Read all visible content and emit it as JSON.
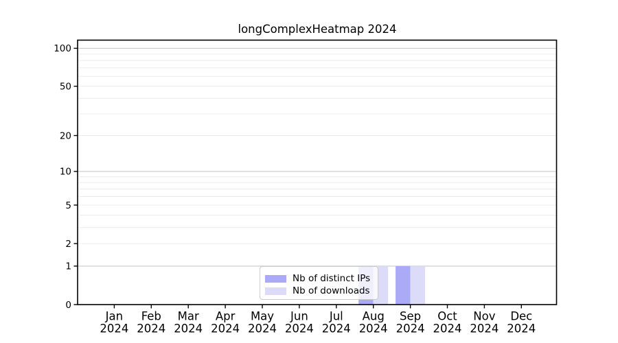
{
  "chart_data": {
    "type": "bar",
    "title": "longComplexHeatmap 2024",
    "x_year": "2024",
    "categories": [
      "Jan",
      "Feb",
      "Mar",
      "Apr",
      "May",
      "Jun",
      "Jul",
      "Aug",
      "Sep",
      "Oct",
      "Nov",
      "Dec"
    ],
    "series": [
      {
        "name": "Nb of distinct IPs",
        "color": "#aaaaf6",
        "values": [
          0,
          0,
          0,
          0,
          0,
          0,
          0,
          1,
          1,
          0,
          0,
          0
        ]
      },
      {
        "name": "Nb of downloads",
        "color": "#dcdcf8",
        "values": [
          0,
          0,
          0,
          0,
          0,
          0,
          0,
          1,
          1,
          0,
          0,
          0
        ]
      }
    ],
    "y_scale": "log1p",
    "ylim": [
      0,
      116
    ],
    "y_ticks_labeled": [
      0,
      1,
      2,
      5,
      10,
      20,
      50,
      100
    ],
    "y_grid_major": [
      1,
      10,
      100
    ],
    "y_grid_minor": [
      2,
      3,
      4,
      5,
      6,
      7,
      8,
      9,
      20,
      30,
      40,
      50,
      60,
      70,
      80,
      90
    ],
    "grid": "horizontal",
    "legend_position": "lower center",
    "colors": {
      "spine": "#000000",
      "grid_major": "#c8c8c8",
      "grid_minor": "#ececec",
      "tick_label": "#000000"
    }
  }
}
